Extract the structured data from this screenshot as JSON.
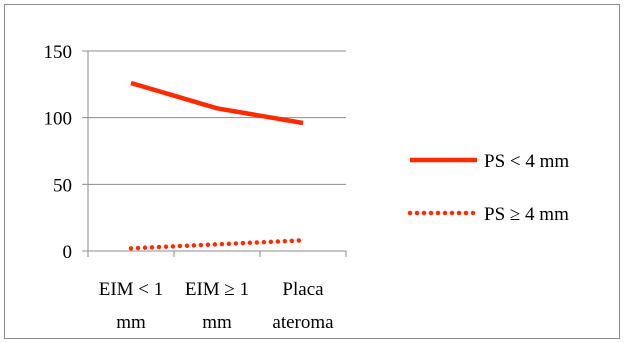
{
  "chart_data": {
    "type": "line",
    "categories": [
      [
        "EIM < 1",
        "mm"
      ],
      [
        "EIM ≥ 1",
        "mm"
      ],
      [
        "Placa",
        "ateroma"
      ]
    ],
    "ylim": [
      0,
      150
    ],
    "yticks": [
      0,
      50,
      100,
      150
    ],
    "grid": true,
    "legend_position": "right",
    "series": [
      {
        "name": "PS < 4 mm",
        "values": [
          126,
          107,
          96
        ],
        "color": "#ff2a00",
        "style": "solid"
      },
      {
        "name": "PS ≥ 4 mm",
        "values": [
          2,
          5,
          8
        ],
        "color": "#ff2a00",
        "style": "dotted"
      }
    ]
  }
}
